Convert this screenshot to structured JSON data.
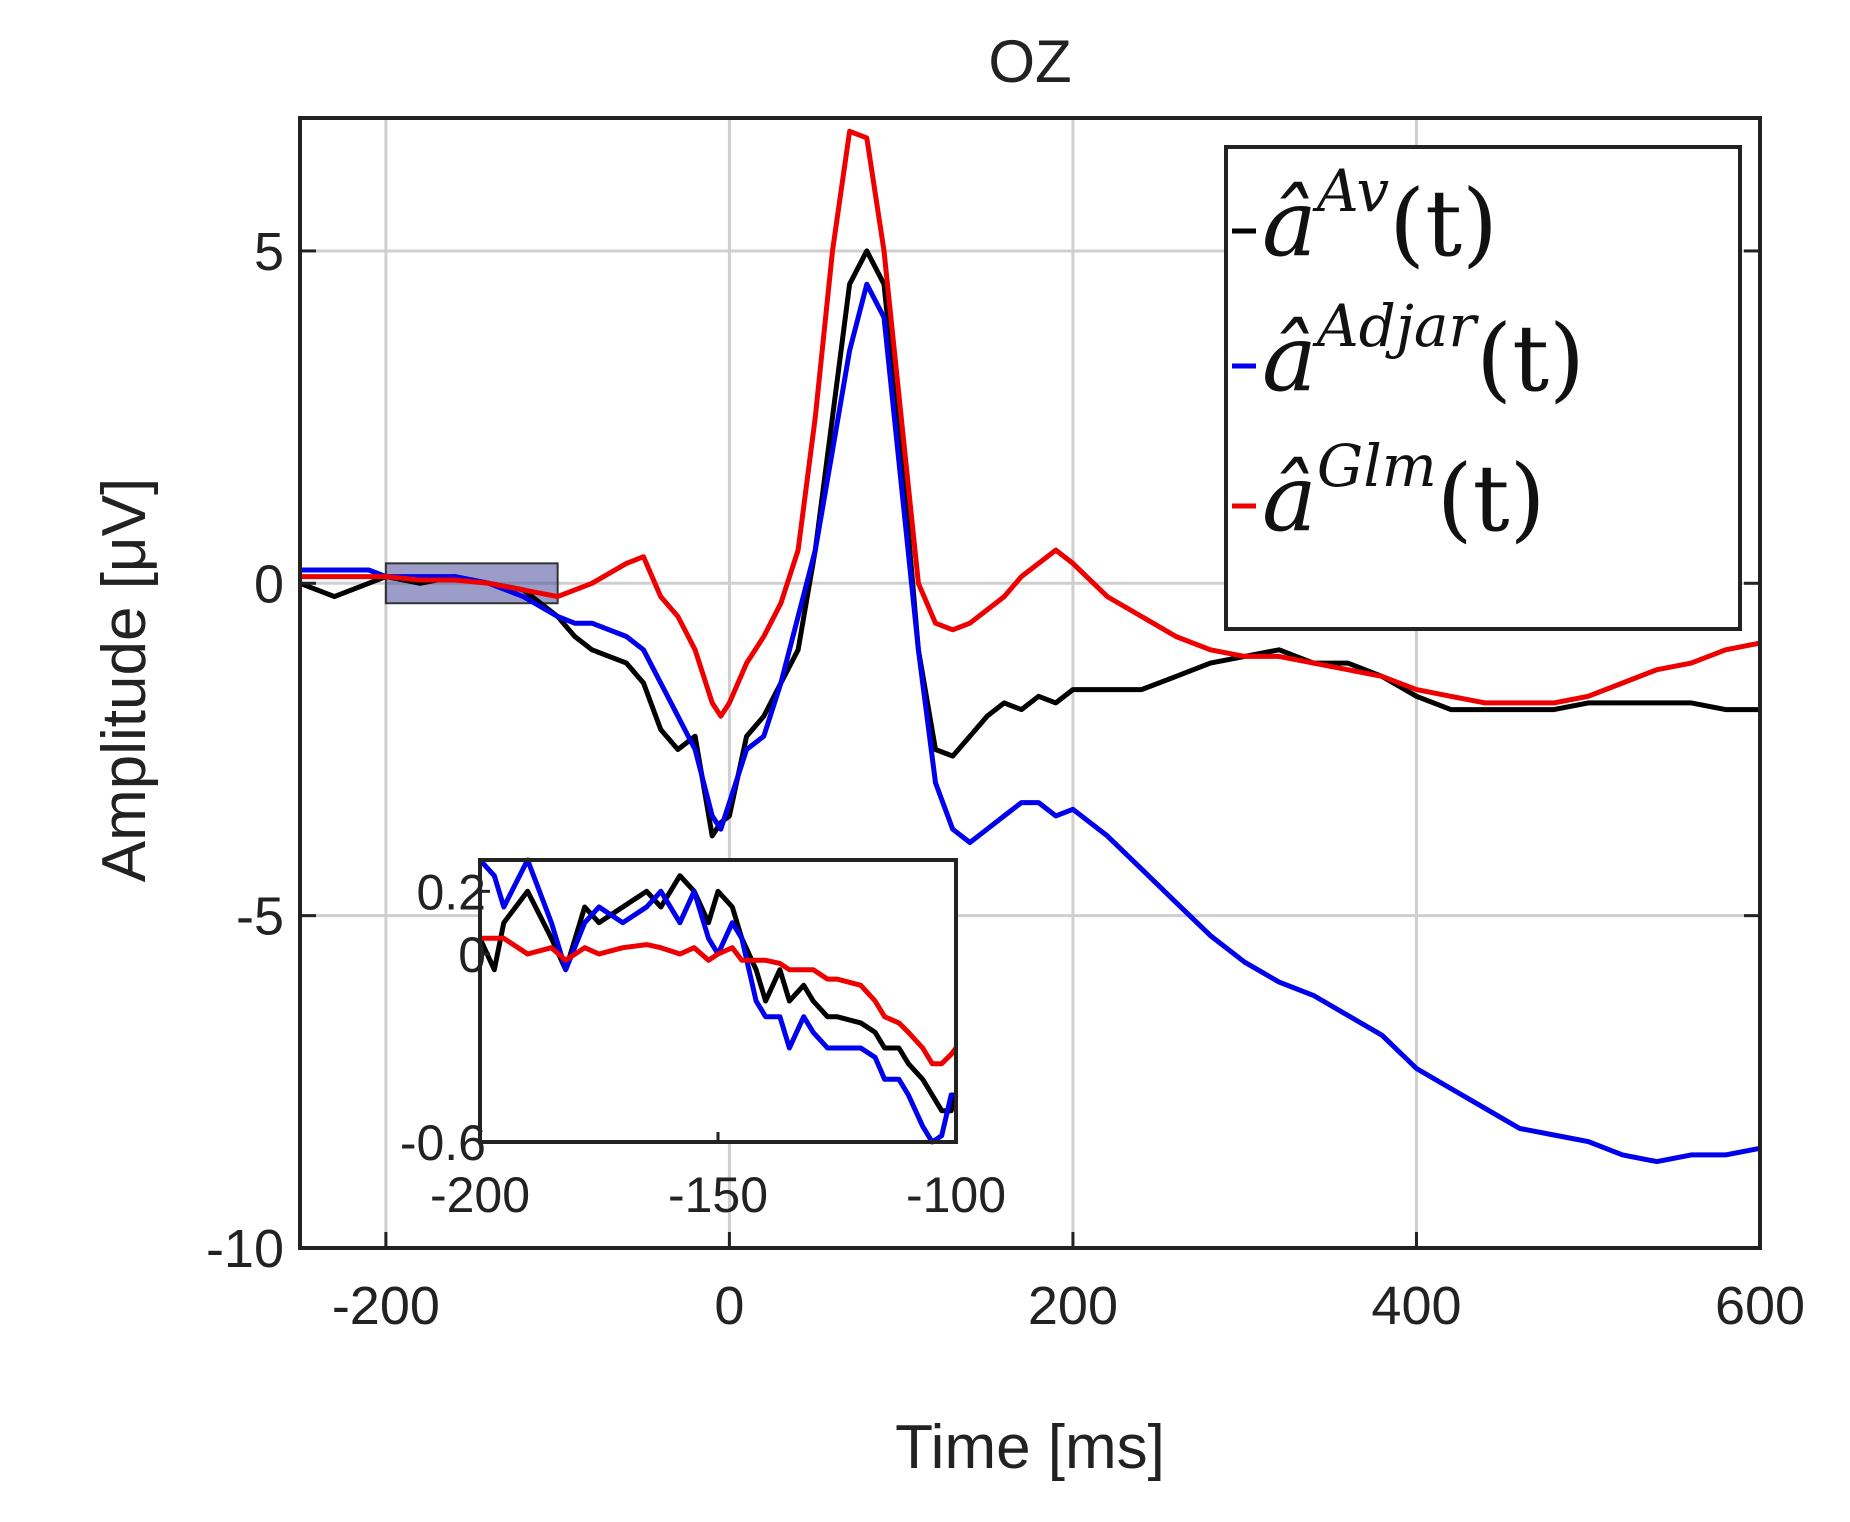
{
  "chart_data": [
    {
      "type": "line",
      "title": "OZ",
      "xlabel": "Time [ms]",
      "ylabel": "Amplitude [μV]",
      "xlim": [
        -250,
        600
      ],
      "ylim": [
        -10,
        7
      ],
      "xticks": [
        -200,
        0,
        200,
        400,
        600
      ],
      "xtick_labels": [
        "-200",
        "0",
        "200",
        "400",
        "600"
      ],
      "yticks": [
        -10,
        -5,
        0,
        5
      ],
      "ytick_labels": [
        "-10",
        "-5",
        "0",
        "5"
      ],
      "grid": true,
      "legend_position": "top-right",
      "highlight_region": {
        "x": [
          -200,
          -100
        ],
        "y": [
          -0.3,
          0.3
        ]
      },
      "series": [
        {
          "name": "â^Av(t)",
          "base": "â",
          "sup": "Av",
          "arg": "(t)",
          "color": "#000000",
          "x": [
            -250,
            -230,
            -210,
            -200,
            -180,
            -160,
            -140,
            -120,
            -100,
            -90,
            -80,
            -60,
            -50,
            -40,
            -30,
            -20,
            -10,
            -5,
            0,
            10,
            20,
            30,
            40,
            50,
            60,
            70,
            80,
            90,
            100,
            110,
            120,
            130,
            140,
            150,
            160,
            170,
            180,
            190,
            200,
            220,
            240,
            260,
            280,
            300,
            320,
            340,
            360,
            380,
            400,
            420,
            440,
            460,
            480,
            500,
            520,
            540,
            560,
            580,
            600
          ],
          "y": [
            0,
            -0.2,
            0,
            0.1,
            0,
            0.1,
            0,
            -0.1,
            -0.5,
            -0.8,
            -1.0,
            -1.2,
            -1.5,
            -2.2,
            -2.5,
            -2.3,
            -3.8,
            -3.6,
            -3.5,
            -2.3,
            -2.0,
            -1.5,
            -1.0,
            0.5,
            2.5,
            4.5,
            5.0,
            4.5,
            2.0,
            -1.0,
            -2.5,
            -2.6,
            -2.3,
            -2.0,
            -1.8,
            -1.9,
            -1.7,
            -1.8,
            -1.6,
            -1.6,
            -1.6,
            -1.4,
            -1.2,
            -1.1,
            -1.0,
            -1.2,
            -1.2,
            -1.4,
            -1.7,
            -1.9,
            -1.9,
            -1.9,
            -1.9,
            -1.8,
            -1.8,
            -1.8,
            -1.8,
            -1.9,
            -1.9
          ]
        },
        {
          "name": "â^Adjar(t)",
          "base": "â",
          "sup": "Adjar",
          "arg": "(t)",
          "color": "#0000ee",
          "x": [
            -250,
            -230,
            -210,
            -200,
            -180,
            -160,
            -140,
            -120,
            -100,
            -90,
            -80,
            -60,
            -50,
            -40,
            -30,
            -20,
            -10,
            -5,
            0,
            10,
            20,
            30,
            40,
            50,
            60,
            70,
            80,
            90,
            100,
            110,
            120,
            130,
            140,
            150,
            160,
            170,
            180,
            190,
            200,
            220,
            240,
            260,
            280,
            300,
            320,
            340,
            360,
            380,
            400,
            420,
            440,
            460,
            480,
            500,
            520,
            540,
            560,
            580,
            600
          ],
          "y": [
            0.2,
            0.2,
            0.2,
            0.1,
            0.1,
            0.1,
            0,
            -0.2,
            -0.5,
            -0.6,
            -0.6,
            -0.8,
            -1.0,
            -1.5,
            -2.0,
            -2.5,
            -3.5,
            -3.7,
            -3.3,
            -2.5,
            -2.3,
            -1.5,
            -0.5,
            0.5,
            2.0,
            3.5,
            4.5,
            4.0,
            1.5,
            -1.0,
            -3.0,
            -3.7,
            -3.9,
            -3.7,
            -3.5,
            -3.3,
            -3.3,
            -3.5,
            -3.4,
            -3.8,
            -4.3,
            -4.8,
            -5.3,
            -5.7,
            -6.0,
            -6.2,
            -6.5,
            -6.8,
            -7.3,
            -7.6,
            -7.9,
            -8.2,
            -8.3,
            -8.4,
            -8.6,
            -8.7,
            -8.6,
            -8.6,
            -8.5
          ]
        },
        {
          "name": "â^Glm(t)",
          "base": "â",
          "sup": "Glm",
          "arg": "(t)",
          "color": "#ee0000",
          "x": [
            -250,
            -230,
            -210,
            -200,
            -180,
            -160,
            -140,
            -120,
            -100,
            -90,
            -80,
            -60,
            -50,
            -40,
            -30,
            -20,
            -10,
            -5,
            0,
            10,
            20,
            30,
            40,
            50,
            60,
            70,
            80,
            90,
            100,
            110,
            120,
            130,
            140,
            150,
            160,
            170,
            180,
            190,
            200,
            220,
            240,
            260,
            280,
            300,
            320,
            340,
            360,
            380,
            400,
            420,
            440,
            460,
            480,
            500,
            520,
            540,
            560,
            580,
            600
          ],
          "y": [
            0.1,
            0.1,
            0.1,
            0.1,
            0.05,
            0.05,
            0,
            -0.1,
            -0.2,
            -0.1,
            0,
            0.3,
            0.4,
            -0.2,
            -0.5,
            -1.0,
            -1.8,
            -2.0,
            -1.8,
            -1.2,
            -0.8,
            -0.3,
            0.5,
            2.5,
            5.0,
            6.8,
            6.7,
            5.0,
            2.5,
            0,
            -0.6,
            -0.7,
            -0.6,
            -0.4,
            -0.2,
            0.1,
            0.3,
            0.5,
            0.3,
            -0.2,
            -0.5,
            -0.8,
            -1.0,
            -1.1,
            -1.1,
            -1.2,
            -1.3,
            -1.4,
            -1.6,
            -1.7,
            -1.8,
            -1.8,
            -1.8,
            -1.7,
            -1.5,
            -1.3,
            -1.2,
            -1.0,
            -0.9
          ]
        }
      ]
    },
    {
      "type": "line",
      "title": "",
      "xlabel": "",
      "ylabel": "",
      "xlim": [
        -200,
        -100
      ],
      "ylim": [
        -0.6,
        0.3
      ],
      "xticks": [
        -200,
        -150,
        -100
      ],
      "xtick_labels": [
        "-200",
        "-150",
        "-100"
      ],
      "yticks": [
        -0.6,
        0,
        0.2
      ],
      "ytick_labels": [
        "-0.6",
        "0",
        "0.2"
      ],
      "grid": false,
      "series": [
        {
          "name": "â^Av(t)",
          "color": "#000000",
          "x": [
            -200,
            -197,
            -195,
            -190,
            -185,
            -182,
            -178,
            -175,
            -170,
            -165,
            -162,
            -158,
            -155,
            -152,
            -150,
            -147,
            -145,
            -142,
            -140,
            -137,
            -135,
            -132,
            -130,
            -127,
            -125,
            -120,
            -117,
            -115,
            -112,
            -110,
            -107,
            -105,
            -103,
            -101,
            -100
          ],
          "y": [
            0.05,
            -0.05,
            0.1,
            0.2,
            0.05,
            -0.05,
            0.15,
            0.1,
            0.15,
            0.2,
            0.15,
            0.25,
            0.2,
            0.1,
            0.2,
            0.15,
            0.05,
            -0.05,
            -0.15,
            -0.05,
            -0.15,
            -0.1,
            -0.15,
            -0.2,
            -0.2,
            -0.22,
            -0.25,
            -0.3,
            -0.3,
            -0.35,
            -0.4,
            -0.45,
            -0.5,
            -0.5,
            -0.45
          ]
        },
        {
          "name": "â^Adjar(t)",
          "color": "#0000ee",
          "x": [
            -200,
            -197,
            -195,
            -190,
            -185,
            -182,
            -178,
            -175,
            -170,
            -165,
            -162,
            -158,
            -155,
            -152,
            -150,
            -147,
            -145,
            -142,
            -140,
            -137,
            -135,
            -132,
            -130,
            -127,
            -125,
            -120,
            -117,
            -115,
            -112,
            -110,
            -107,
            -105,
            -103,
            -101,
            -100
          ],
          "y": [
            0.3,
            0.25,
            0.15,
            0.3,
            0.1,
            -0.05,
            0.1,
            0.15,
            0.1,
            0.15,
            0.2,
            0.1,
            0.2,
            0.05,
            0.0,
            0.1,
            0.05,
            -0.15,
            -0.2,
            -0.2,
            -0.3,
            -0.2,
            -0.25,
            -0.3,
            -0.3,
            -0.3,
            -0.33,
            -0.4,
            -0.4,
            -0.45,
            -0.55,
            -0.6,
            -0.58,
            -0.45,
            -0.45
          ]
        },
        {
          "name": "â^Glm(t)",
          "color": "#ee0000",
          "x": [
            -200,
            -197,
            -195,
            -190,
            -185,
            -182,
            -178,
            -175,
            -170,
            -165,
            -162,
            -158,
            -155,
            -152,
            -150,
            -147,
            -145,
            -142,
            -140,
            -137,
            -135,
            -132,
            -130,
            -127,
            -125,
            -120,
            -117,
            -115,
            -112,
            -110,
            -107,
            -105,
            -103,
            -101,
            -100
          ],
          "y": [
            0.05,
            0.05,
            0.05,
            0.0,
            0.02,
            -0.02,
            0.02,
            0.0,
            0.02,
            0.03,
            0.02,
            0.0,
            0.02,
            -0.02,
            0.0,
            0.02,
            -0.02,
            -0.02,
            -0.02,
            -0.03,
            -0.05,
            -0.05,
            -0.05,
            -0.08,
            -0.08,
            -0.1,
            -0.15,
            -0.2,
            -0.22,
            -0.25,
            -0.3,
            -0.35,
            -0.35,
            -0.32,
            -0.3
          ]
        }
      ]
    }
  ]
}
